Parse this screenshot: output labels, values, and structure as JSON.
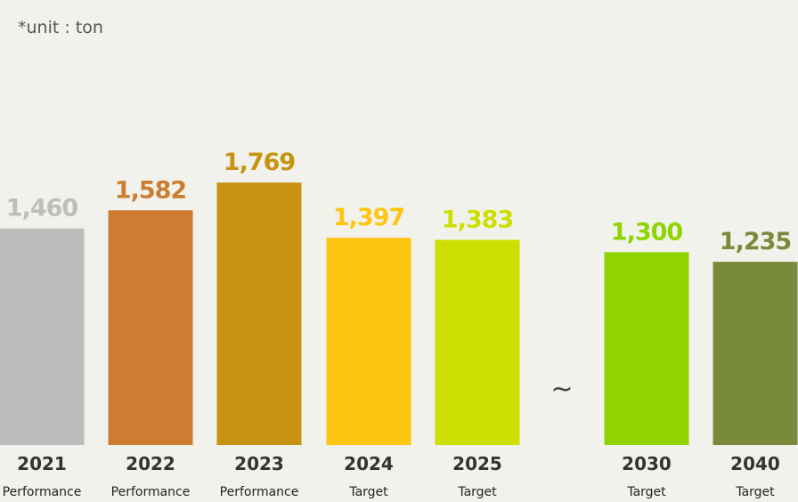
{
  "unit_note": "*unit : ton",
  "break_mark": "~",
  "chart_data": {
    "type": "bar",
    "categories": [
      "2021",
      "2022",
      "2023",
      "2024",
      "2025",
      "2030",
      "2040"
    ],
    "subcategories": [
      "Performance",
      "Performance",
      "Performance",
      "Target",
      "Target",
      "Target",
      "Target"
    ],
    "values": [
      1460,
      1582,
      1769,
      1397,
      1383,
      1300,
      1235
    ],
    "value_labels": [
      "1,460",
      "1,582",
      "1,769",
      "1,397",
      "1,383",
      "1,300",
      "1,235"
    ],
    "colors": [
      "#bdbdbd",
      "#cd7d32",
      "#c79310",
      "#fec511",
      "#cddf00",
      "#8fd400",
      "#7a8a3c"
    ],
    "axis_break_after": "2025",
    "legend": "none",
    "grid": false
  }
}
